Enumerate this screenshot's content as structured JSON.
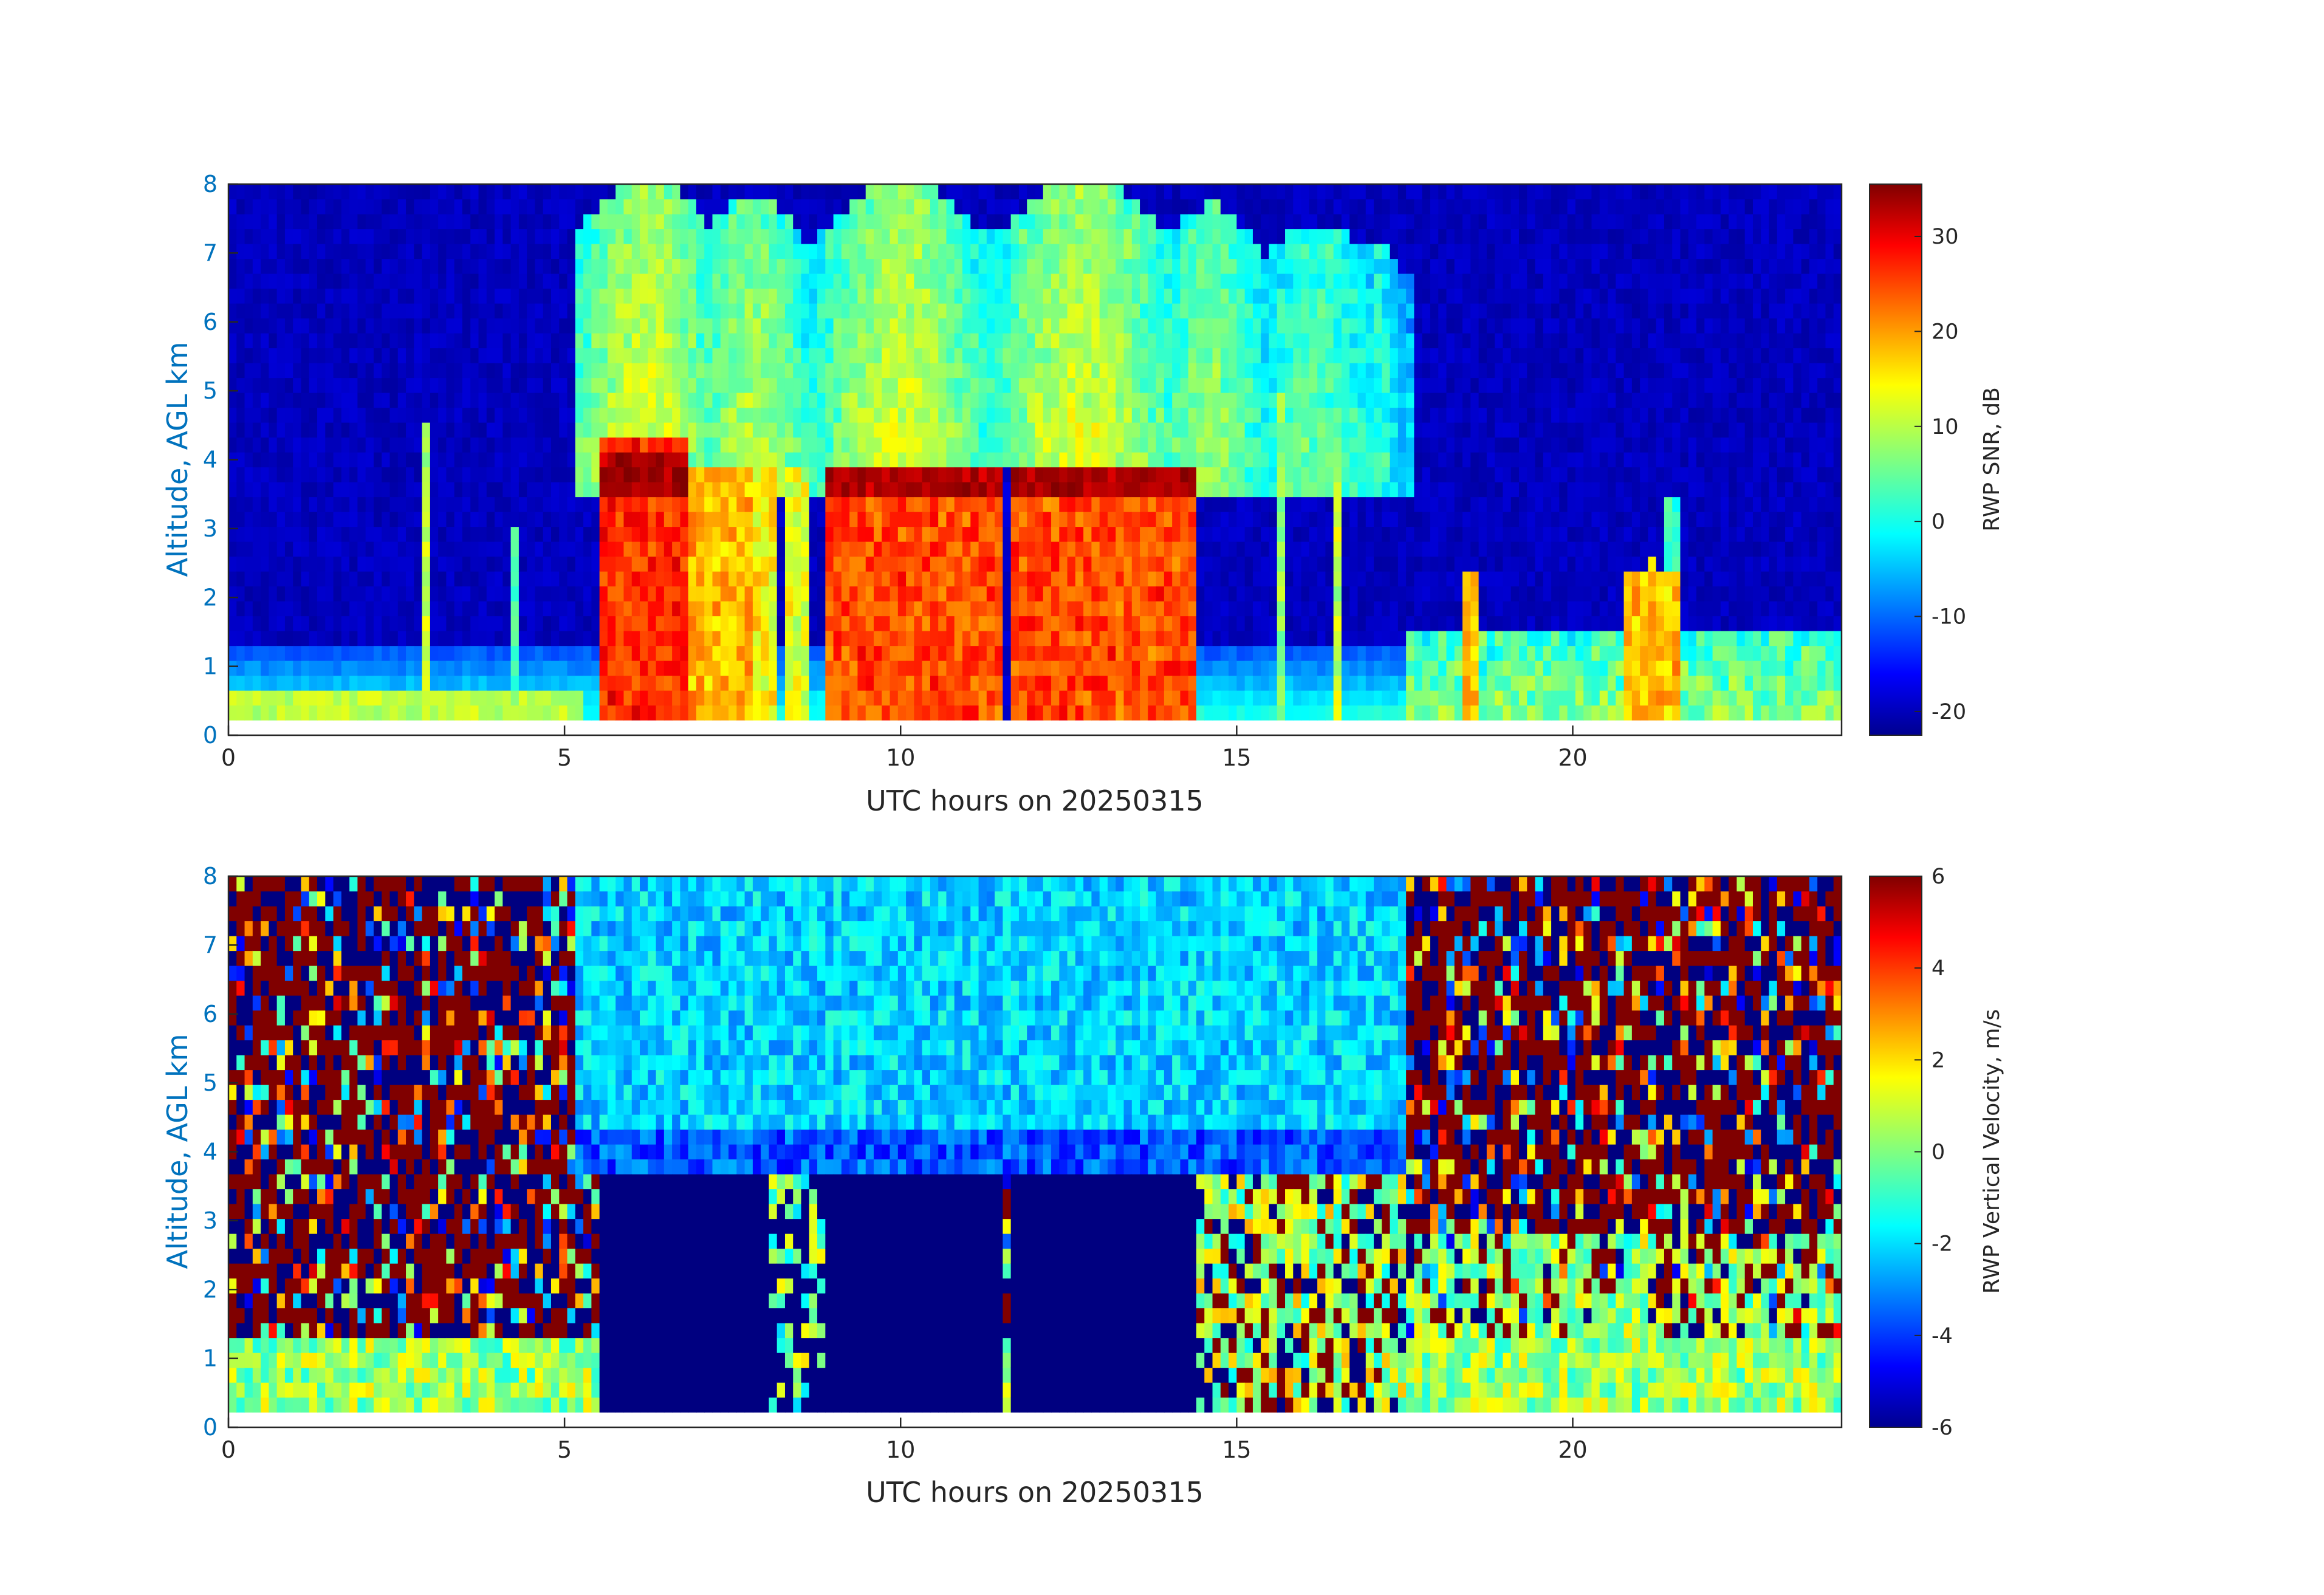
{
  "chart_data": [
    {
      "type": "heatmap",
      "xlabel": "UTC hours on 20250315",
      "ylabel": "Altitude, AGL km",
      "xlim": [
        0,
        24
      ],
      "ylim": [
        0,
        8
      ],
      "x_ticks": [
        0,
        5,
        10,
        15,
        20
      ],
      "y_ticks": [
        0,
        1,
        2,
        3,
        4,
        5,
        6,
        7,
        8
      ],
      "data_altitude_range_km": [
        0.22,
        8
      ],
      "colorbar": {
        "label": "RWP SNR, dB",
        "range": [
          -22.5,
          35.5
        ],
        "ticks": [
          -20,
          -10,
          0,
          10,
          20,
          30
        ],
        "colormap": "jet"
      },
      "features": [
        {
          "hours": [
            0,
            5.2
          ],
          "description": "low values aloft; near-surface layer up to ~1.3 km around 0 to 5 dB"
        },
        {
          "hours": [
            5.5,
            6.9
          ],
          "snr_db_below_4_3km": 26,
          "band_4km_db": 33
        },
        {
          "hours": [
            6.9,
            8.9
          ],
          "snr_db_below_4km": 18
        },
        {
          "hours": [
            8.9,
            11.5
          ],
          "snr_db_below_4km": 24,
          "band_4km_db": 32
        },
        {
          "hours": [
            11.5,
            11.7
          ],
          "snr_db": -20
        },
        {
          "hours": [
            11.7,
            14.4
          ],
          "snr_db_below_4km": 24,
          "band_4km_db": 32
        },
        {
          "hours": [
            5.2,
            17.5
          ],
          "snr_db_above_4km": [
            0,
            15
          ]
        },
        {
          "hours": [
            17.5,
            24
          ],
          "description": "low values aloft; isolated plumes near 18.5 h and 21-21.5 h up to ~3.5 km"
        }
      ]
    },
    {
      "type": "heatmap",
      "xlabel": "UTC hours on 20250315",
      "ylabel": "Altitude, AGL km",
      "xlim": [
        0,
        24
      ],
      "ylim": [
        0,
        8
      ],
      "x_ticks": [
        0,
        5,
        10,
        15,
        20
      ],
      "y_ticks": [
        0,
        1,
        2,
        3,
        4,
        5,
        6,
        7,
        8
      ],
      "data_altitude_range_km": [
        0.22,
        8
      ],
      "colorbar": {
        "label": "RWP Vertical Velocity, m/s",
        "range": [
          -6,
          6
        ],
        "ticks": [
          -6,
          -4,
          -2,
          0,
          2,
          4,
          6
        ],
        "colormap": "jet"
      },
      "features": [
        {
          "hours": [
            0,
            5.2
          ],
          "description": "noisy velocities alternating between -6 and +6 m/s above ~1.3 km; near 0 m/s below"
        },
        {
          "hours": [
            5.5,
            8.0
          ],
          "altitude_km": [
            0.22,
            3.7
          ],
          "velocity_ms": -6
        },
        {
          "hours": [
            8.9,
            11.5
          ],
          "altitude_km": [
            0.22,
            3.7
          ],
          "velocity_ms": -6
        },
        {
          "hours": [
            11.7,
            14.4
          ],
          "altitude_km": [
            0.22,
            3.7
          ],
          "velocity_ms": -6
        },
        {
          "hours": [
            5.2,
            17.5
          ],
          "altitude_km": [
            3.7,
            8
          ],
          "velocity_ms": [
            -3,
            -1
          ]
        },
        {
          "hours": [
            17.5,
            24
          ],
          "description": "noisy velocities alternating between -6 and +6 m/s aloft; near 0 to -2 m/s below ~2.5 km"
        }
      ]
    }
  ]
}
